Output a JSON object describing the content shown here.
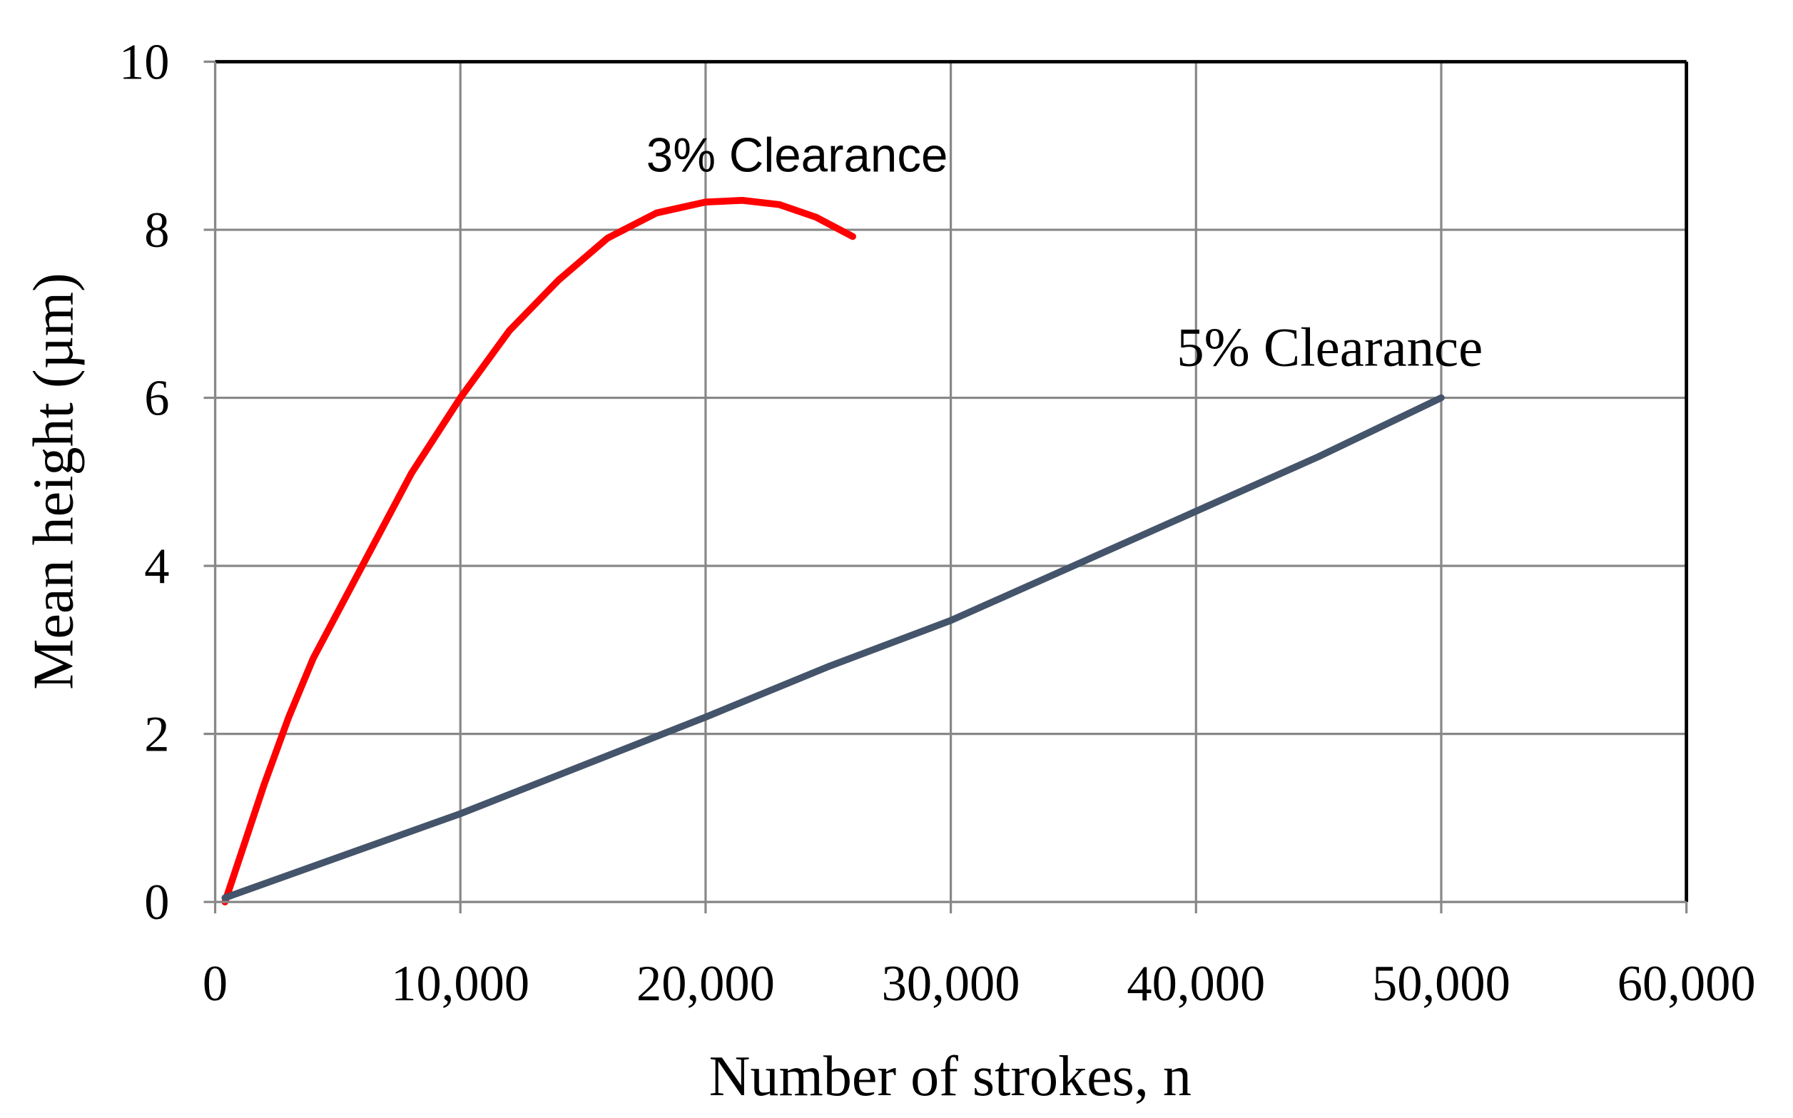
{
  "chart_data": {
    "type": "line",
    "xlabel": "Number of strokes, n",
    "ylabel": "Mean height (µm)",
    "xlim": [
      0,
      60000
    ],
    "ylim": [
      0,
      10
    ],
    "xticks": [
      0,
      {
        "value": 10000,
        "label": "10,000"
      },
      {
        "value": 20000,
        "label": "20,000"
      },
      {
        "value": 30000,
        "label": "30,000"
      },
      {
        "value": 40000,
        "label": "40,000"
      },
      {
        "value": 50000,
        "label": "50,000"
      },
      {
        "value": 60000,
        "label": "60,000"
      }
    ],
    "yticks": [
      0,
      2,
      4,
      6,
      8,
      10
    ],
    "grid": true,
    "series": [
      {
        "name": "3% Clearance",
        "color": "#ff0000",
        "x": [
          400,
          2000,
          3000,
          4000,
          6000,
          8000,
          10000,
          12000,
          14000,
          16000,
          18000,
          20000,
          21500,
          23000,
          24500,
          26000
        ],
        "values": [
          0,
          1.4,
          2.2,
          2.9,
          4.0,
          5.1,
          6.0,
          6.8,
          7.4,
          7.9,
          8.2,
          8.33,
          8.35,
          8.3,
          8.15,
          7.92
        ]
      },
      {
        "name": "5% Clearance",
        "color": "#44546a",
        "x": [
          400,
          10000,
          20000,
          25000,
          30000,
          35000,
          40000,
          45000,
          50000
        ],
        "values": [
          0.05,
          1.05,
          2.2,
          2.8,
          3.35,
          4.0,
          4.65,
          5.3,
          6.0
        ]
      }
    ]
  }
}
